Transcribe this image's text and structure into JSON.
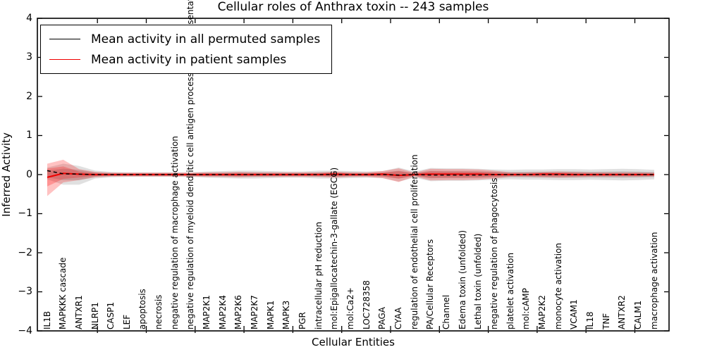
{
  "chart_data": {
    "type": "line",
    "title": "Cellular roles of Anthrax toxin -- 243 samples",
    "xlabel": "Cellular Entities",
    "ylabel": "Inferred Activity",
    "ylim": [
      -4,
      4
    ],
    "ytick_labels": [
      "4",
      "3",
      "2",
      "1",
      "0",
      "−1",
      "−2",
      "−3",
      "−4"
    ],
    "ytick_values": [
      4,
      3,
      2,
      1,
      0,
      -1,
      -2,
      -3,
      -4
    ],
    "grid": false,
    "legend_position": "upper left",
    "categories": [
      "IL1B",
      "MAPKKK cascade",
      "ANTXR1",
      "NLRP1",
      "CASP1",
      "LEF",
      "apoptosis",
      "necrosis",
      "negative regulation of macrophage activation",
      "negative regulation of myeloid dendritic cell antigen processing and presentation",
      "MAP2K1",
      "MAP2K4",
      "MAP2K6",
      "MAP2K7",
      "MAPK1",
      "MAPK3",
      "PGR",
      "intracellular pH reduction",
      "mol:Epigallocatechin-3-gallate (EGCG)",
      "mol:Ca2+",
      "LOC728358",
      "PAGA",
      "CYAA",
      "regulation of endothelial cell proliferation",
      "PA/Cellular Receptors",
      "Channel",
      "Edema toxin (unfolded)",
      "Lethal toxin (unfolded)",
      "negative regulation of phagocytosis",
      "platelet activation",
      "mol:cAMP",
      "MAP2K2",
      "monocyte activation",
      "VCAM1",
      "IL18",
      "TNF",
      "ANTXR2",
      "CALM1",
      "macrophage activation"
    ],
    "series": [
      {
        "name": "Mean activity in all permuted samples",
        "color": "#000000",
        "style": "dashed",
        "values": [
          0.1,
          0.02,
          0.01,
          0,
          0,
          0,
          0,
          0,
          0,
          0,
          0,
          0,
          0,
          0,
          0,
          0,
          0,
          0,
          0,
          0,
          0,
          0,
          -0.01,
          0,
          -0.01,
          -0.01,
          -0.01,
          -0.01,
          0,
          0,
          0,
          0,
          0,
          0,
          0,
          0,
          0,
          0,
          0
        ]
      },
      {
        "name": "Mean activity in patient samples",
        "color": "#f00000",
        "style": "solid",
        "values": [
          -0.07,
          0.03,
          0.01,
          0,
          0,
          0,
          0,
          0,
          0,
          0,
          0,
          0,
          0,
          0,
          0,
          0,
          0,
          0,
          0.01,
          0,
          0,
          0.01,
          -0.02,
          0,
          0.01,
          0.01,
          0.01,
          0.01,
          0,
          0,
          0,
          0.01,
          0.01,
          0,
          0,
          0,
          0,
          0,
          0
        ]
      }
    ],
    "bands": [
      {
        "name": "permuted-samples-range",
        "color": "rgba(0,0,0,0.12)",
        "upper": [
          0.18,
          0.28,
          0.22,
          0.1,
          0.07,
          0.06,
          0.06,
          0.06,
          0.06,
          0.06,
          0.08,
          0.09,
          0.1,
          0.1,
          0.09,
          0.08,
          0.08,
          0.1,
          0.1,
          0.09,
          0.08,
          0.09,
          0.18,
          0.08,
          0.17,
          0.16,
          0.16,
          0.15,
          0.13,
          0.12,
          0.13,
          0.13,
          0.14,
          0.14,
          0.13,
          0.14,
          0.15,
          0.14,
          0.12
        ],
        "lower": [
          -0.12,
          -0.26,
          -0.26,
          -0.1,
          -0.07,
          -0.06,
          -0.06,
          -0.06,
          -0.06,
          -0.06,
          -0.08,
          -0.09,
          -0.1,
          -0.1,
          -0.09,
          -0.08,
          -0.08,
          -0.1,
          -0.1,
          -0.09,
          -0.08,
          -0.09,
          -0.18,
          -0.08,
          -0.17,
          -0.16,
          -0.16,
          -0.15,
          -0.13,
          -0.12,
          -0.13,
          -0.13,
          -0.14,
          -0.14,
          -0.13,
          -0.14,
          -0.15,
          -0.14,
          -0.12
        ]
      },
      {
        "name": "patient-samples-range",
        "color": "rgba(255,0,0,0.24)",
        "upper": [
          0.28,
          0.38,
          0.14,
          0.07,
          0.05,
          0.05,
          0.05,
          0.05,
          0.05,
          0.05,
          0.06,
          0.06,
          0.07,
          0.06,
          0.06,
          0.06,
          0.06,
          0.06,
          0.08,
          0.06,
          0.06,
          0.09,
          0.16,
          0.05,
          0.15,
          0.14,
          0.14,
          0.13,
          0.1,
          0.06,
          0.06,
          0.07,
          0.08,
          0.07,
          0.06,
          0.06,
          0.06,
          0.06,
          0.05
        ],
        "lower": [
          -0.55,
          -0.2,
          -0.14,
          -0.07,
          -0.05,
          -0.05,
          -0.05,
          -0.05,
          -0.05,
          -0.05,
          -0.06,
          -0.06,
          -0.07,
          -0.06,
          -0.06,
          -0.06,
          -0.06,
          -0.06,
          -0.08,
          -0.06,
          -0.06,
          -0.09,
          -0.19,
          -0.05,
          -0.15,
          -0.14,
          -0.14,
          -0.13,
          -0.1,
          -0.06,
          -0.06,
          -0.07,
          -0.08,
          -0.07,
          -0.06,
          -0.06,
          -0.06,
          -0.06,
          -0.05
        ]
      }
    ]
  }
}
